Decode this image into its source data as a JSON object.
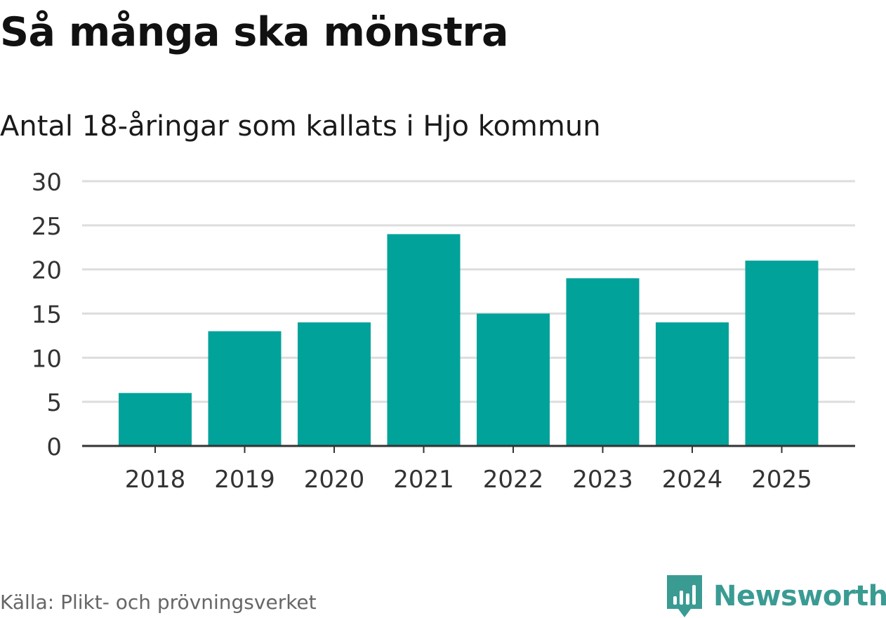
{
  "header": {
    "title": "Så många ska mönstra",
    "subtitle": "Antal 18-åringar som kallats i Hjo kommun"
  },
  "footer": {
    "source": "Källa: Plikt- och prövningsverket",
    "brand": "Newsworthy"
  },
  "colors": {
    "bar": "#00a29a",
    "grid": "#dddddd",
    "axis": "#333333",
    "brand": "#3a9b93"
  },
  "icons": {
    "brand_logo": "newsworthy-logo-icon"
  },
  "chart_data": {
    "type": "bar",
    "categories": [
      "2018",
      "2019",
      "2020",
      "2021",
      "2022",
      "2023",
      "2024",
      "2025"
    ],
    "values": [
      6,
      13,
      14,
      24,
      15,
      19,
      14,
      21
    ],
    "ylim": [
      0,
      30
    ],
    "yticks": [
      0,
      5,
      10,
      15,
      20,
      25,
      30
    ],
    "grid": true
  }
}
